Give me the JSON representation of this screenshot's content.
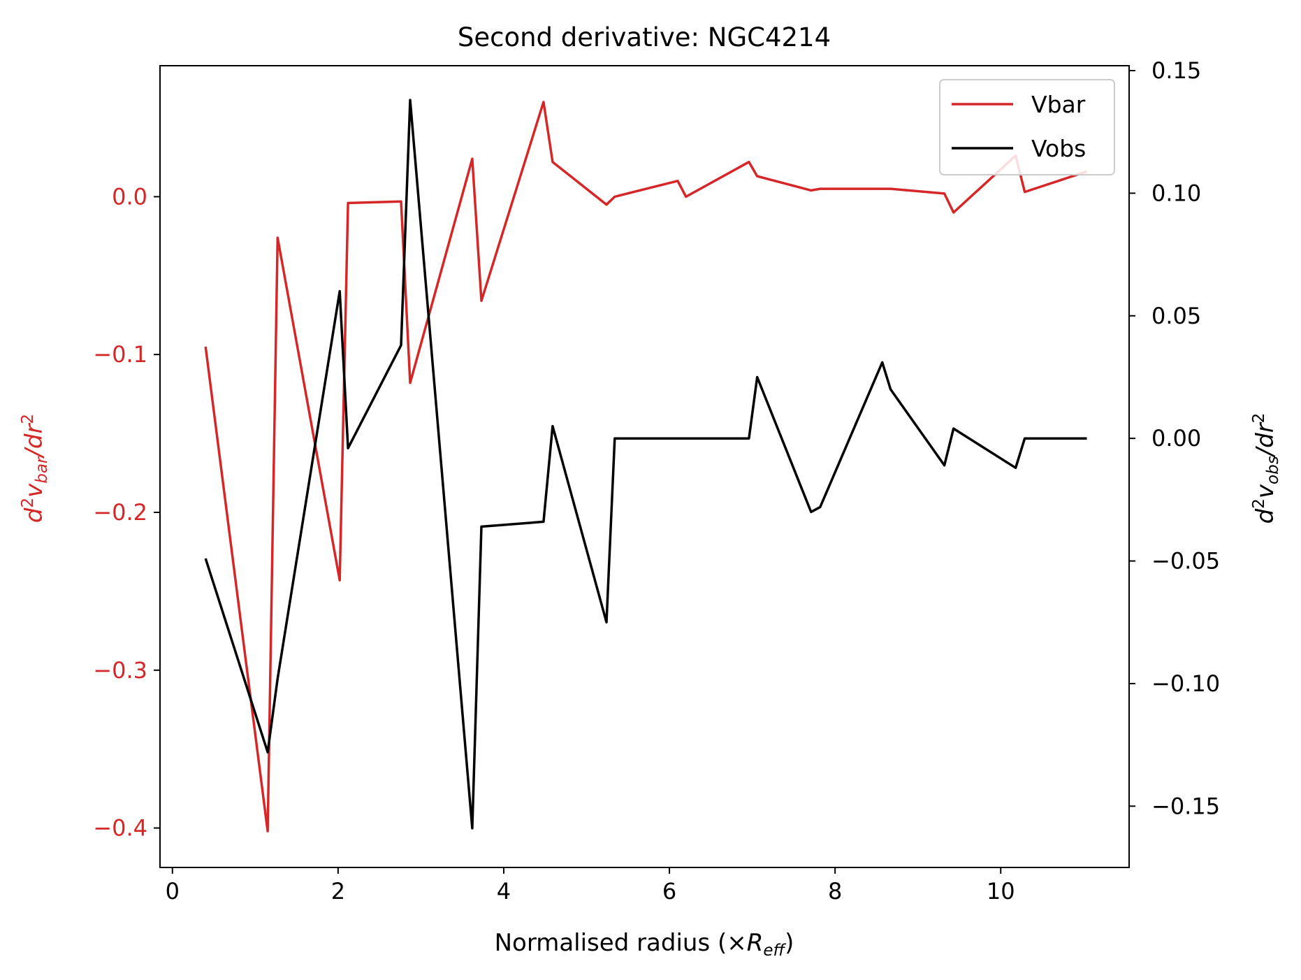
{
  "chart_data": {
    "type": "line",
    "title": "Second derivative: NGC4214",
    "xlabel": {
      "main": "Normalised radius (×",
      "italic": "R",
      "sub": "eff",
      "close": ")"
    },
    "ylabel_left": {
      "d": "d",
      "sup1": "2",
      "v": "v",
      "sub": "bar",
      "rest": "/dr",
      "sup2": "2"
    },
    "ylabel_right": {
      "d": "d",
      "sup1": "2",
      "v": "v",
      "sub": "obs",
      "rest": "/dr",
      "sup2": "2"
    },
    "xlim": [
      -0.15,
      11.55
    ],
    "ylim_left": [
      -0.425,
      0.083
    ],
    "ylim_right": [
      -0.175,
      0.152
    ],
    "x_ticks": [
      0,
      2,
      4,
      6,
      8,
      10
    ],
    "x_tick_labels": [
      "0",
      "2",
      "4",
      "6",
      "8",
      "10"
    ],
    "y_left_ticks": [
      0.0,
      -0.1,
      -0.2,
      -0.3,
      -0.4
    ],
    "y_left_tick_labels": [
      "0.0",
      "−0.1",
      "−0.2",
      "−0.3",
      "−0.4"
    ],
    "y_right_ticks": [
      0.15,
      0.1,
      0.05,
      0.0,
      -0.05,
      -0.1,
      -0.15
    ],
    "y_right_tick_labels": [
      "0.15",
      "0.10",
      "0.05",
      "0.00",
      "−0.05",
      "−0.10",
      "−0.15"
    ],
    "legend_position": "top-right",
    "grid": false,
    "series": [
      {
        "name": "Vbar",
        "axis": "left",
        "color": "#d62728",
        "x": [
          0.4,
          1.15,
          1.27,
          2.02,
          2.12,
          2.76,
          2.87,
          3.62,
          3.73,
          4.48,
          4.59,
          5.24,
          5.34,
          6.1,
          6.2,
          6.96,
          7.06,
          7.71,
          7.82,
          8.67,
          9.32,
          9.43,
          10.18,
          10.29,
          11.04
        ],
        "y": [
          -0.095,
          -0.402,
          -0.026,
          -0.243,
          -0.004,
          -0.003,
          -0.118,
          0.024,
          -0.066,
          0.06,
          0.022,
          -0.005,
          0.0,
          0.01,
          0.0,
          0.022,
          0.013,
          0.004,
          0.005,
          0.005,
          0.002,
          -0.01,
          0.026,
          0.003,
          0.016
        ]
      },
      {
        "name": "Vobs",
        "axis": "right",
        "color": "#000000",
        "x": [
          0.4,
          1.15,
          1.27,
          2.02,
          2.12,
          2.76,
          2.87,
          3.62,
          3.73,
          4.48,
          4.59,
          5.24,
          5.34,
          6.1,
          6.2,
          6.96,
          7.06,
          7.71,
          7.82,
          8.57,
          8.67,
          9.32,
          9.43,
          10.18,
          10.29,
          11.04
        ],
        "y": [
          -0.049,
          -0.128,
          -0.098,
          0.06,
          -0.004,
          0.038,
          0.138,
          -0.159,
          -0.036,
          -0.034,
          0.005,
          -0.075,
          0.0,
          0.0,
          0.0,
          0.0,
          0.025,
          -0.03,
          -0.028,
          0.031,
          0.02,
          -0.011,
          0.004,
          -0.012,
          0.0,
          0.0
        ]
      }
    ]
  }
}
